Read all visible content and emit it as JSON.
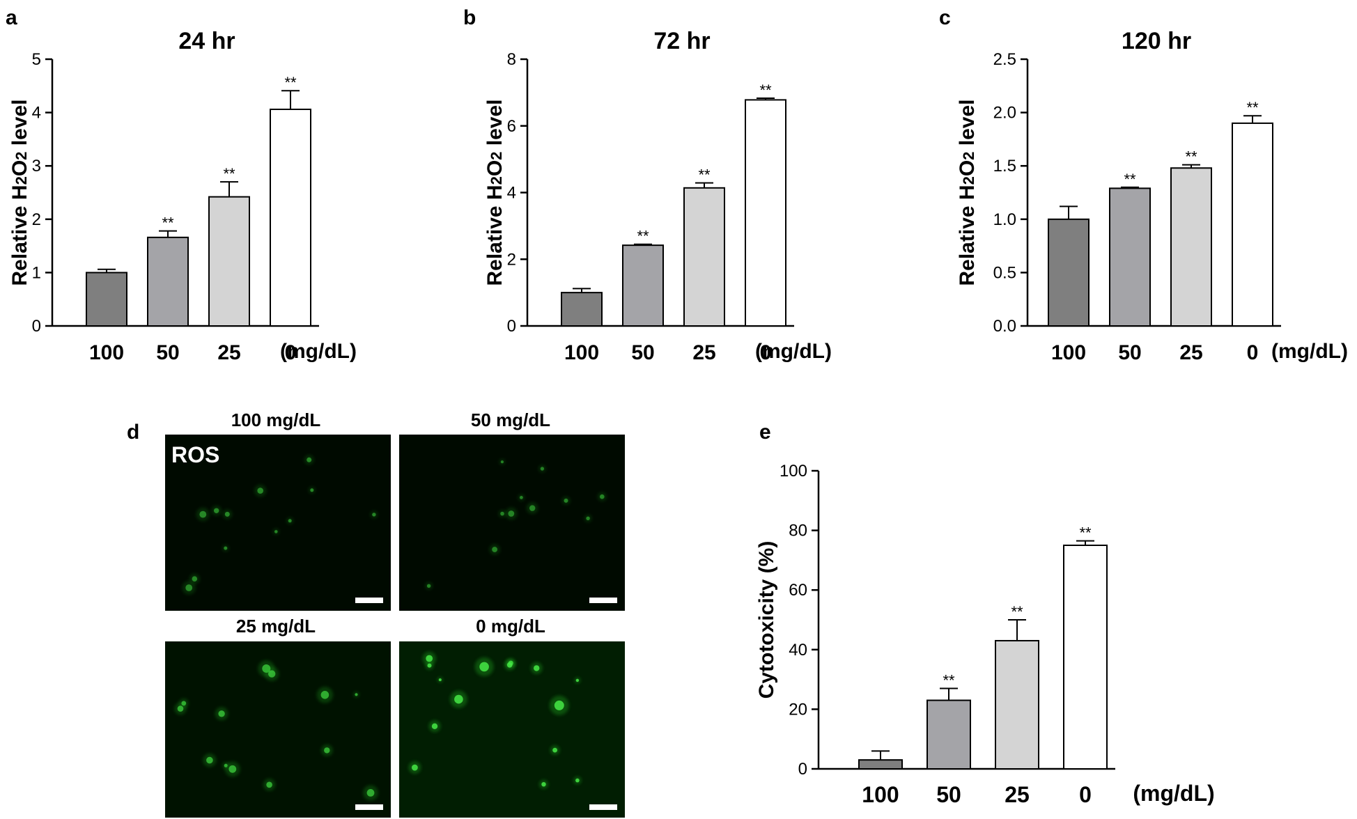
{
  "panel_labels": {
    "a": "a",
    "b": "b",
    "c": "c",
    "d": "d",
    "e": "e"
  },
  "colors": {
    "dark_gray": "#7f7f7f",
    "mid_gray": "#a4a4a8",
    "light_gray": "#d4d4d4",
    "white": "#ffffff",
    "axis": "#000000"
  },
  "unit_label": "(mg/dL)",
  "chart_data": [
    {
      "panel": "a",
      "type": "bar",
      "title": "24 hr",
      "ylabel_prefix": "Relative H",
      "ylabel_sub1": "2",
      "ylabel_mid": "O",
      "ylabel_sub2": "2",
      "ylabel_suffix": " level",
      "xlabel": "(mg/dL)",
      "categories": [
        "100",
        "50",
        "25",
        "0"
      ],
      "values": [
        1.0,
        1.66,
        2.42,
        4.06
      ],
      "errors": [
        0.06,
        0.12,
        0.28,
        0.35
      ],
      "significance": [
        "",
        "**",
        "**",
        "**"
      ],
      "ylim": [
        0,
        5
      ],
      "yticks": [
        "0",
        "1",
        "2",
        "3",
        "4",
        "5"
      ],
      "bar_colors": [
        "#7f7f7f",
        "#a4a4a8",
        "#d4d4d4",
        "#ffffff"
      ]
    },
    {
      "panel": "b",
      "type": "bar",
      "title": "72 hr",
      "ylabel_prefix": "Relative H",
      "ylabel_sub1": "2",
      "ylabel_mid": "O",
      "ylabel_sub2": "2",
      "ylabel_suffix": " level",
      "xlabel": "(mg/dL)",
      "categories": [
        "100",
        "50",
        "25",
        "0"
      ],
      "values": [
        1.0,
        2.42,
        4.14,
        6.78
      ],
      "errors": [
        0.12,
        0.03,
        0.15,
        0.05
      ],
      "significance": [
        "",
        "**",
        "**",
        "**"
      ],
      "ylim": [
        0,
        8
      ],
      "yticks": [
        "0",
        "2",
        "4",
        "6",
        "8"
      ],
      "bar_colors": [
        "#7f7f7f",
        "#a4a4a8",
        "#d4d4d4",
        "#ffffff"
      ]
    },
    {
      "panel": "c",
      "type": "bar",
      "title": "120 hr",
      "ylabel_prefix": "Relative H",
      "ylabel_sub1": "2",
      "ylabel_mid": "O",
      "ylabel_sub2": "2",
      "ylabel_suffix": " level",
      "xlabel": "(mg/dL)",
      "categories": [
        "100",
        "50",
        "25",
        "0"
      ],
      "values": [
        1.0,
        1.29,
        1.48,
        1.9
      ],
      "errors": [
        0.12,
        0.01,
        0.03,
        0.07
      ],
      "significance": [
        "",
        "**",
        "**",
        "**"
      ],
      "ylim": [
        0,
        2.5
      ],
      "yticks": [
        "0.0",
        "0.5",
        "1.0",
        "1.5",
        "2.0",
        "2.5"
      ],
      "bar_colors": [
        "#7f7f7f",
        "#a4a4a8",
        "#d4d4d4",
        "#ffffff"
      ]
    },
    {
      "panel": "e",
      "type": "bar",
      "title": "",
      "ylabel": "Cytotoxicity  (%)",
      "xlabel": "(mg/dL)",
      "categories": [
        "100",
        "50",
        "25",
        "0"
      ],
      "values": [
        3,
        23,
        43,
        75
      ],
      "errors": [
        3,
        4,
        7,
        1.5
      ],
      "significance": [
        "",
        "**",
        "**",
        "**"
      ],
      "ylim": [
        0,
        100
      ],
      "yticks": [
        "0",
        "20",
        "40",
        "60",
        "80",
        "100"
      ],
      "bar_colors": [
        "#7f7f7f",
        "#a4a4a8",
        "#d4d4d4",
        "#ffffff"
      ]
    }
  ],
  "micrographs": {
    "stain_label": "ROS",
    "images": [
      {
        "label": "100 mg/dL",
        "brightness": 0.25
      },
      {
        "label": "50 mg/dL",
        "brightness": 0.22
      },
      {
        "label": "25 mg/dL",
        "brightness": 0.5
      },
      {
        "label": "0 mg/dL",
        "brightness": 0.85
      }
    ]
  }
}
